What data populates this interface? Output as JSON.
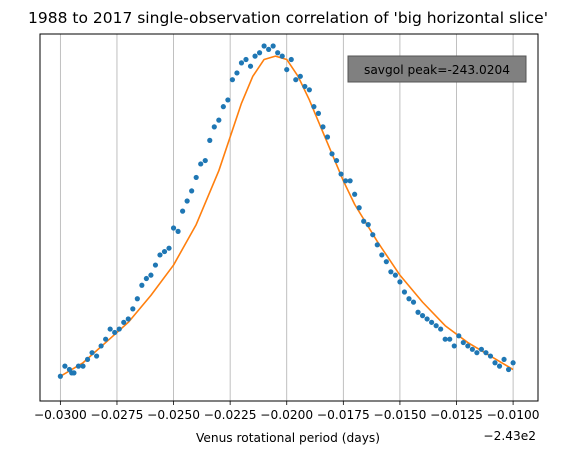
{
  "chart_data": {
    "type": "scatter",
    "title": "1988 to 2017 single-observation correlation of 'big horizontal slice'",
    "xlabel": "Venus rotational period (days)",
    "ylabel": "",
    "x_offset_label": "−2.43e2",
    "x_offset": -243,
    "xlim": [
      -0.0309,
      -0.0089
    ],
    "ylim": [
      0.0,
      1.0
    ],
    "y_ticks_visible": false,
    "grid": "vertical",
    "xticks": [
      {
        "value": -0.03,
        "label": "−0.0300"
      },
      {
        "value": -0.0275,
        "label": "−0.0275"
      },
      {
        "value": -0.025,
        "label": "−0.0250"
      },
      {
        "value": -0.0225,
        "label": "−0.0225"
      },
      {
        "value": -0.02,
        "label": "−0.0200"
      },
      {
        "value": -0.0175,
        "label": "−0.0175"
      },
      {
        "value": -0.015,
        "label": "−0.0150"
      },
      {
        "value": -0.0125,
        "label": "−0.0125"
      },
      {
        "value": -0.01,
        "label": "−0.0100"
      }
    ],
    "annotation": {
      "text": "savgol peak=-243.0204",
      "position": "top-right"
    },
    "colors": {
      "points": "#1f77b4",
      "smooth": "#ff7f0e",
      "grid": "#b0b0b0",
      "annotation_bg": "#808080"
    },
    "series": [
      {
        "kind": "points",
        "x": [
          -0.03,
          -0.0298,
          -0.0296,
          -0.0295,
          -0.0294,
          -0.0292,
          -0.029,
          -0.0288,
          -0.0286,
          -0.0284,
          -0.0282,
          -0.028,
          -0.0278,
          -0.0276,
          -0.0274,
          -0.0272,
          -0.027,
          -0.0268,
          -0.0266,
          -0.0264,
          -0.0262,
          -0.026,
          -0.0258,
          -0.0256,
          -0.0254,
          -0.0252,
          -0.025,
          -0.0248,
          -0.0246,
          -0.0244,
          -0.0242,
          -0.024,
          -0.0238,
          -0.0236,
          -0.0234,
          -0.0232,
          -0.023,
          -0.0228,
          -0.0226,
          -0.0224,
          -0.0222,
          -0.022,
          -0.0218,
          -0.0216,
          -0.0214,
          -0.0212,
          -0.021,
          -0.0208,
          -0.0206,
          -0.0204,
          -0.0202,
          -0.02,
          -0.0198,
          -0.0196,
          -0.0194,
          -0.0192,
          -0.019,
          -0.0188,
          -0.0186,
          -0.0184,
          -0.0182,
          -0.018,
          -0.0178,
          -0.0176,
          -0.0174,
          -0.0172,
          -0.017,
          -0.0168,
          -0.0166,
          -0.0164,
          -0.0162,
          -0.016,
          -0.0158,
          -0.0156,
          -0.0154,
          -0.0152,
          -0.015,
          -0.0148,
          -0.0146,
          -0.0144,
          -0.0142,
          -0.014,
          -0.0138,
          -0.0136,
          -0.0134,
          -0.0132,
          -0.013,
          -0.0128,
          -0.0126,
          -0.0124,
          -0.0122,
          -0.012,
          -0.0118,
          -0.0116,
          -0.0114,
          -0.0112,
          -0.011,
          -0.0108,
          -0.0106,
          -0.0104,
          -0.0102,
          -0.01
        ],
        "y": [
          0.02,
          0.05,
          0.04,
          0.03,
          0.03,
          0.05,
          0.05,
          0.07,
          0.09,
          0.08,
          0.11,
          0.13,
          0.16,
          0.15,
          0.16,
          0.18,
          0.19,
          0.22,
          0.25,
          0.29,
          0.31,
          0.32,
          0.35,
          0.38,
          0.39,
          0.4,
          0.46,
          0.45,
          0.51,
          0.54,
          0.57,
          0.61,
          0.65,
          0.66,
          0.72,
          0.76,
          0.78,
          0.82,
          0.84,
          0.9,
          0.92,
          0.95,
          0.96,
          0.94,
          0.97,
          0.98,
          1.0,
          0.99,
          1.0,
          0.98,
          0.97,
          0.93,
          0.96,
          0.9,
          0.91,
          0.88,
          0.87,
          0.82,
          0.8,
          0.76,
          0.73,
          0.68,
          0.66,
          0.62,
          0.6,
          0.6,
          0.56,
          0.52,
          0.48,
          0.47,
          0.44,
          0.41,
          0.38,
          0.36,
          0.33,
          0.32,
          0.3,
          0.27,
          0.25,
          0.24,
          0.21,
          0.2,
          0.19,
          0.18,
          0.17,
          0.16,
          0.13,
          0.13,
          0.11,
          0.14,
          0.12,
          0.11,
          0.1,
          0.09,
          0.1,
          0.09,
          0.08,
          0.06,
          0.05,
          0.07,
          0.04,
          0.06
        ]
      },
      {
        "kind": "smooth",
        "x": [
          -0.03,
          -0.029,
          -0.028,
          -0.027,
          -0.026,
          -0.025,
          -0.024,
          -0.023,
          -0.0225,
          -0.022,
          -0.0215,
          -0.021,
          -0.0205,
          -0.02,
          -0.0195,
          -0.019,
          -0.0185,
          -0.018,
          -0.0175,
          -0.017,
          -0.016,
          -0.015,
          -0.014,
          -0.013,
          -0.012,
          -0.011,
          -0.01
        ],
        "y": [
          0.02,
          0.06,
          0.12,
          0.18,
          0.26,
          0.35,
          0.47,
          0.63,
          0.73,
          0.83,
          0.91,
          0.96,
          0.97,
          0.96,
          0.91,
          0.84,
          0.76,
          0.68,
          0.6,
          0.53,
          0.42,
          0.32,
          0.24,
          0.17,
          0.12,
          0.08,
          0.04
        ]
      }
    ]
  }
}
